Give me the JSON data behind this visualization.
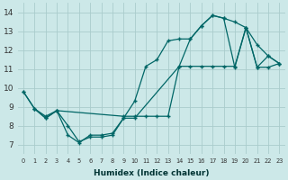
{
  "xlabel": "Humidex (Indice chaleur)",
  "bg_color": "#cce8e8",
  "grid_color": "#aacccc",
  "line_color": "#006666",
  "xlim": [
    -0.5,
    23.5
  ],
  "ylim": [
    6.5,
    14.5
  ],
  "xticks": [
    0,
    1,
    2,
    3,
    4,
    5,
    6,
    7,
    8,
    9,
    10,
    11,
    12,
    13,
    14,
    15,
    16,
    17,
    18,
    19,
    20,
    21,
    22,
    23
  ],
  "yticks": [
    7,
    8,
    9,
    10,
    11,
    12,
    13,
    14
  ],
  "line1_x": [
    0,
    1,
    2,
    3,
    4,
    5,
    6,
    7,
    8,
    9,
    10,
    11,
    12,
    13,
    14,
    15,
    16,
    17,
    18,
    19,
    20,
    21,
    22,
    23
  ],
  "line1_y": [
    9.8,
    8.9,
    8.4,
    8.8,
    8.0,
    7.15,
    7.4,
    7.4,
    7.5,
    8.4,
    9.3,
    11.15,
    11.5,
    12.5,
    12.6,
    12.6,
    13.3,
    13.85,
    13.7,
    13.5,
    13.2,
    12.3,
    11.7,
    11.3
  ],
  "line2_x": [
    0,
    1,
    2,
    3,
    9,
    10,
    11,
    12,
    13,
    14,
    15,
    16,
    17,
    18,
    19,
    20,
    21,
    22,
    23
  ],
  "line2_y": [
    9.8,
    8.9,
    8.5,
    8.8,
    8.5,
    8.5,
    8.5,
    8.5,
    8.5,
    11.15,
    11.15,
    11.15,
    11.15,
    11.15,
    11.15,
    13.2,
    11.1,
    11.1,
    11.3
  ],
  "line3_x": [
    1,
    2,
    3,
    4,
    5,
    6,
    7,
    8,
    9,
    10,
    14,
    15,
    16,
    17,
    18,
    19,
    20,
    21,
    22,
    23
  ],
  "line3_y": [
    8.9,
    8.4,
    8.8,
    7.5,
    7.1,
    7.5,
    7.5,
    7.6,
    8.4,
    8.4,
    11.15,
    12.6,
    13.3,
    13.85,
    13.7,
    11.1,
    13.2,
    11.1,
    11.7,
    11.3
  ]
}
